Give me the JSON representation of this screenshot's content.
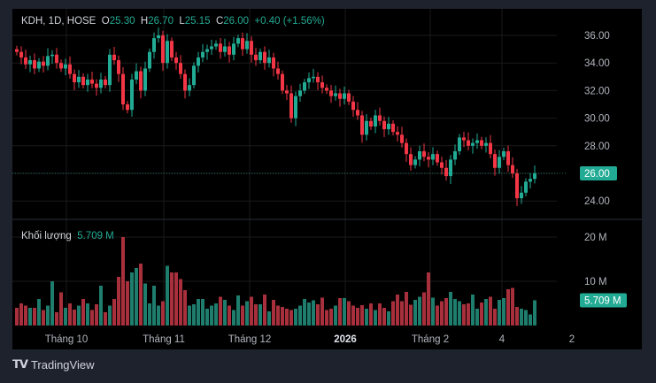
{
  "header": {
    "symbol": "KDH, 1D, HOSE",
    "o_label": "O",
    "o": "25.30",
    "h_label": "H",
    "h": "26.70",
    "l_label": "L",
    "l": "25.15",
    "c_label": "C",
    "c": "26.00",
    "change": "+0.40 (+1.56%)"
  },
  "volume_legend": {
    "label": "Khối lượng",
    "value": "5.709 M"
  },
  "footer": {
    "brand": "TradingView"
  },
  "colors": {
    "up": "#22ab94",
    "down": "#f23645",
    "volume_up": "#1e7d6c",
    "volume_down": "#a8303c",
    "background": "#000000",
    "frame": "#1e222d"
  },
  "chart_data": {
    "type": "candlestick",
    "price_axis": {
      "ticks": [
        "36.00",
        "34.00",
        "32.00",
        "30.00",
        "28.00",
        "24.00"
      ],
      "ylim": [
        23,
        37.5
      ],
      "last_price_label": "26.00",
      "last_price": 26.0
    },
    "volume_axis": {
      "ticks": [
        "20 M",
        "10 M"
      ],
      "last_volume_label": "5.709 M"
    },
    "time_axis": {
      "labels": [
        "Tháng 10",
        "Tháng 11",
        "Tháng 12",
        "2026",
        "Tháng 2",
        "4",
        "2"
      ]
    },
    "close": [
      34.8,
      34.4,
      33.9,
      34.2,
      33.6,
      34.1,
      33.8,
      34.5,
      34.6,
      34.0,
      33.6,
      33.9,
      33.2,
      32.6,
      33.0,
      32.4,
      32.8,
      32.5,
      32.2,
      32.8,
      32.4,
      34.6,
      34.2,
      33.2,
      31.0,
      30.6,
      32.8,
      33.4,
      32.0,
      33.6,
      34.8,
      35.8,
      36.0,
      34.0,
      35.6,
      34.4,
      34.0,
      33.2,
      32.0,
      32.4,
      33.8,
      34.4,
      34.8,
      35.0,
      35.2,
      35.4,
      34.8,
      35.2,
      34.6,
      35.4,
      35.8,
      35.0,
      35.6,
      34.6,
      34.2,
      34.8,
      34.0,
      34.4,
      33.6,
      33.2,
      32.0,
      31.8,
      30.0,
      31.6,
      32.0,
      32.6,
      32.9,
      33.0,
      32.6,
      32.2,
      32.0,
      31.6,
      31.8,
      31.4,
      31.8,
      31.2,
      30.6,
      30.2,
      28.8,
      29.8,
      29.4,
      30.2,
      29.8,
      29.2,
      29.6,
      29.0,
      28.8,
      28.2,
      27.4,
      26.6,
      27.0,
      27.6,
      27.2,
      27.0,
      27.4,
      26.8,
      26.4,
      25.8,
      27.0,
      27.6,
      28.6,
      28.4,
      28.0,
      28.2,
      28.4,
      28.0,
      28.2,
      27.4,
      26.4,
      27.2,
      27.6,
      26.6,
      26.0,
      24.2,
      24.6,
      25.4,
      25.6,
      26.0
    ],
    "volume_m": [
      4,
      5,
      4.5,
      4,
      4,
      6,
      3.5,
      4.5,
      10,
      3,
      7.5,
      4,
      5,
      3.6,
      4.5,
      6,
      5,
      3.5,
      4.8,
      9,
      3,
      4.5,
      6,
      11,
      20,
      10,
      12,
      13,
      14,
      9.5,
      5,
      9,
      4.5,
      5.5,
      13.5,
      12,
      12,
      10.5,
      8,
      4.5,
      4.8,
      6,
      6,
      3.8,
      4.5,
      5,
      6.5,
      5.8,
      4.5,
      3.5,
      6.8,
      4.5,
      5.5,
      6.5,
      4.8,
      4.8,
      7,
      3.2,
      5.8,
      4.5,
      4.2,
      3.8,
      3.5,
      3.8,
      4.5,
      6,
      5.2,
      5.7,
      4.8,
      6.3,
      3.5,
      3.8,
      4.5,
      6.2,
      6.2,
      5.5,
      4.5,
      4,
      4.6,
      3.8,
      5,
      3.5,
      5,
      4,
      3.2,
      5.5,
      7,
      5.5,
      7.6,
      4.7,
      5.8,
      6.5,
      7.5,
      12,
      6.3,
      4.5,
      5.5,
      6.2,
      7.6,
      6,
      5.5,
      4.8,
      5,
      7,
      3.8,
      5.2,
      6,
      6.5,
      3.8,
      5.8,
      6.2,
      8.2,
      8.5,
      4.2,
      3.8,
      3.5,
      2.5,
      5.709
    ]
  }
}
